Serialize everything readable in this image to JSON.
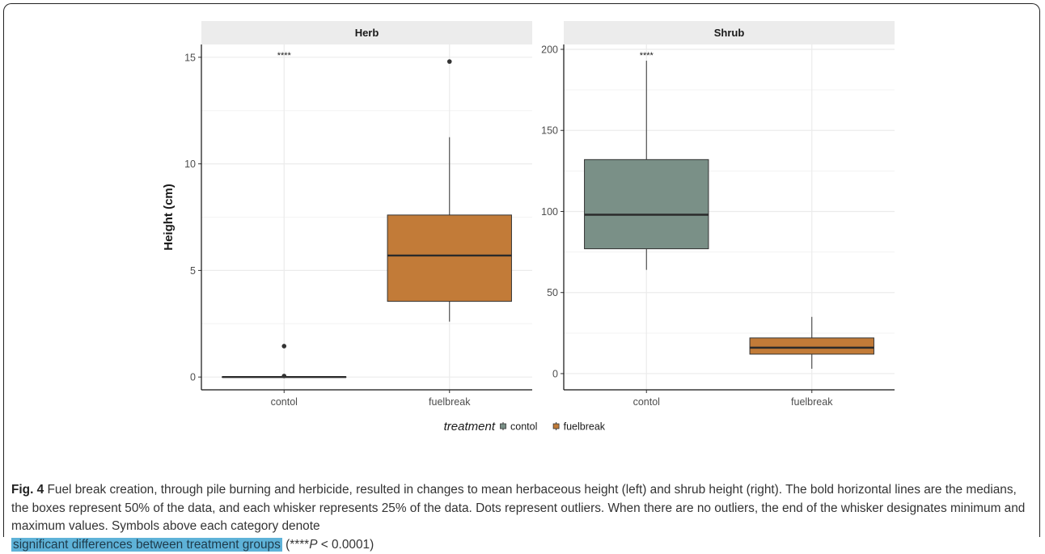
{
  "chart_data": [
    {
      "type": "box",
      "panel_title": "Herb",
      "ylabel": "Height (cm)",
      "ylim": [
        -0.6,
        15.6
      ],
      "yticks": [
        0,
        5,
        10,
        15
      ],
      "ytick_labels": [
        "0",
        "5",
        "10",
        "15"
      ],
      "categories": [
        "contol",
        "fuelbreak"
      ],
      "significance": "****",
      "boxes": [
        {
          "category": "contol",
          "treatment": "contol",
          "min": 0,
          "q1": 0,
          "median": 0,
          "q3": 0,
          "max": 0,
          "outliers": [
            1.45,
            0.05
          ]
        },
        {
          "category": "fuelbreak",
          "treatment": "fuelbreak",
          "min": 2.6,
          "q1": 3.55,
          "median": 5.7,
          "q3": 7.6,
          "max": 11.25,
          "outliers": [
            14.8
          ]
        }
      ]
    },
    {
      "type": "box",
      "panel_title": "Shrub",
      "ylim": [
        -10,
        203
      ],
      "yticks": [
        0,
        50,
        100,
        150,
        200
      ],
      "ytick_labels": [
        "0",
        "50",
        "100",
        "150",
        "200"
      ],
      "categories": [
        "contol",
        "fuelbreak"
      ],
      "significance": "****",
      "boxes": [
        {
          "category": "contol",
          "treatment": "contol",
          "min": 64,
          "q1": 77,
          "median": 98,
          "q3": 132,
          "max": 193,
          "outliers": []
        },
        {
          "category": "fuelbreak",
          "treatment": "fuelbreak",
          "min": 3,
          "q1": 12,
          "median": 16,
          "q3": 22,
          "max": 35,
          "outliers": []
        }
      ]
    }
  ],
  "legend": {
    "title": "treatment",
    "placement": "bottom",
    "entries": [
      {
        "label": "contol",
        "color": "#7a9087"
      },
      {
        "label": "fuelbreak",
        "color": "#c27b38"
      }
    ]
  },
  "colors": {
    "contol": "#7a9087",
    "fuelbreak": "#c27b38",
    "strip": "#ececec",
    "grid": "#ebebeb"
  },
  "caption": {
    "fig_label": "Fig. 4",
    "text": "Fuel break creation, through pile burning and herbicide, resulted in changes to mean herbaceous height (left) and shrub height (right). The bold horizontal lines are the medians, the boxes represent 50% of the data, and each whisker represents 25% of the data. Dots represent outliers. When there are no outliers, the end of the whisker designates minimum and maximum values. Symbols above each category denote",
    "highlighted": "significant differences between treatment groups",
    "tail_open": "(****",
    "p_symbol": "P",
    "tail_close": " < 0.0001)"
  }
}
